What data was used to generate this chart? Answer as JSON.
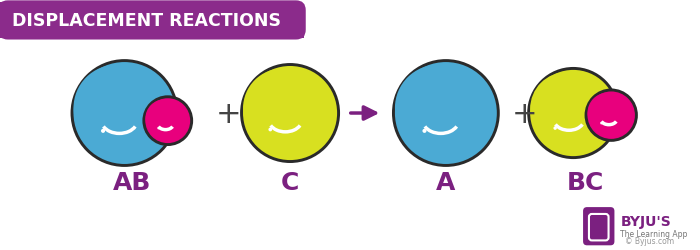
{
  "title": "DISPLACEMENT REACTIONS",
  "title_bg_color": "#8B2B8B",
  "title_text_color": "#FFFFFF",
  "bg_color": "#FFFFFF",
  "blue_color": "#4BAAD4",
  "blue_mid": "#3380B0",
  "yellow_color": "#D8E020",
  "yellow_mid": "#B0BA00",
  "pink_color": "#E8007D",
  "pink_mid": "#C0005A",
  "outline_color": "#333333",
  "purple_color": "#7B2080",
  "label_color": "#7B2080",
  "label_fontsize": 18,
  "copyright_text": "© Byjus.com",
  "byju_text": "BYJU'S",
  "byju_sub": "The Learning App"
}
